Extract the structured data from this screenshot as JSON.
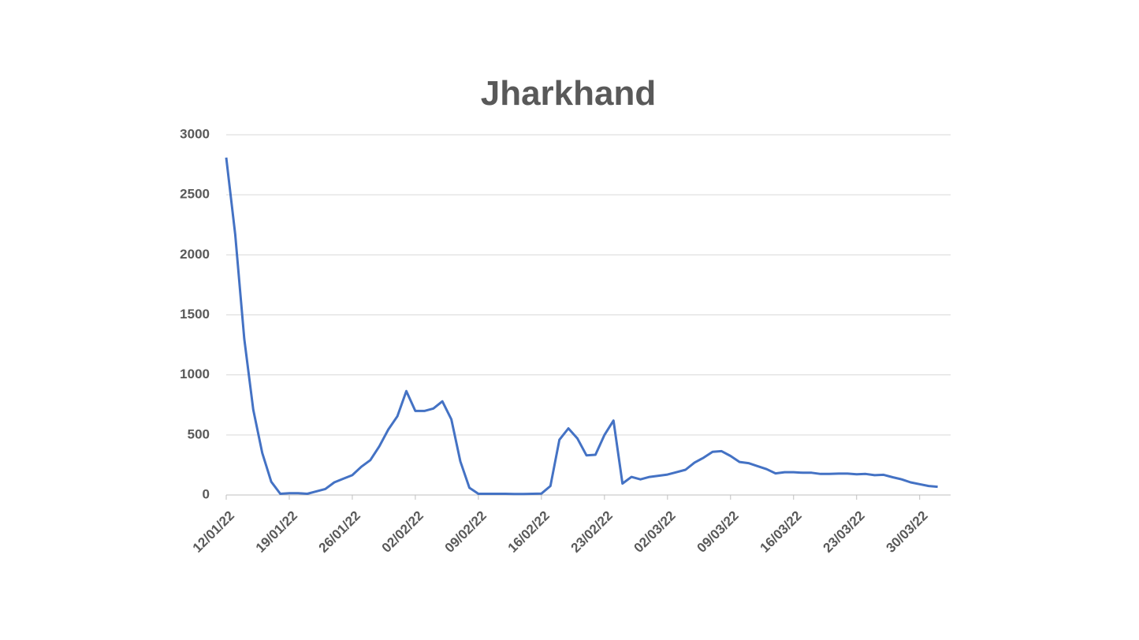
{
  "chart_data": {
    "type": "line",
    "title": "Jharkhand",
    "x": [
      "12/01/22",
      "13/01/22",
      "14/01/22",
      "15/01/22",
      "16/01/22",
      "17/01/22",
      "18/01/22",
      "19/01/22",
      "20/01/22",
      "21/01/22",
      "22/01/22",
      "23/01/22",
      "24/01/22",
      "25/01/22",
      "26/01/22",
      "27/01/22",
      "28/01/22",
      "29/01/22",
      "30/01/22",
      "31/01/22",
      "01/02/22",
      "02/02/22",
      "03/02/22",
      "04/02/22",
      "05/02/22",
      "06/02/22",
      "07/02/22",
      "08/02/22",
      "09/02/22",
      "10/02/22",
      "11/02/22",
      "12/02/22",
      "13/02/22",
      "14/02/22",
      "15/02/22",
      "16/02/22",
      "17/02/22",
      "18/02/22",
      "19/02/22",
      "20/02/22",
      "21/02/22",
      "22/02/22",
      "23/02/22",
      "24/02/22",
      "25/02/22",
      "26/02/22",
      "27/02/22",
      "28/02/22",
      "01/03/22",
      "02/03/22",
      "03/03/22",
      "04/03/22",
      "05/03/22",
      "06/03/22",
      "07/03/22",
      "08/03/22",
      "09/03/22",
      "10/03/22",
      "11/03/22",
      "12/03/22",
      "13/03/22",
      "14/03/22",
      "15/03/22",
      "16/03/22",
      "17/03/22",
      "18/03/22",
      "19/03/22",
      "20/03/22",
      "21/03/22",
      "22/03/22",
      "23/03/22",
      "24/03/22",
      "25/03/22",
      "26/03/22",
      "27/03/22",
      "28/03/22",
      "29/03/22",
      "30/03/22",
      "31/03/22",
      "01/04/22"
    ],
    "series": [
      {
        "color": "#4472c4",
        "values": [
          2810,
          2170,
          1300,
          710,
          350,
          110,
          10,
          15,
          15,
          10,
          30,
          50,
          105,
          135,
          165,
          235,
          290,
          405,
          545,
          655,
          865,
          700,
          700,
          720,
          780,
          630,
          280,
          60,
          10,
          10,
          10,
          10,
          8,
          8,
          10,
          12,
          75,
          460,
          555,
          470,
          330,
          335,
          500,
          620,
          95,
          150,
          130,
          150,
          160,
          170,
          190,
          210,
          270,
          310,
          360,
          365,
          325,
          275,
          265,
          240,
          215,
          180,
          190,
          190,
          185,
          185,
          175,
          175,
          178,
          178,
          172,
          175,
          165,
          168,
          148,
          130,
          105,
          90,
          75,
          68
        ]
      }
    ],
    "xlim": [
      "12/01/22",
      "02/04/22"
    ],
    "xticks": [
      "12/01/22",
      "19/01/22",
      "26/01/22",
      "02/02/22",
      "09/02/22",
      "16/02/22",
      "23/02/22",
      "02/03/22",
      "09/03/22",
      "16/03/22",
      "23/03/22",
      "30/03/22"
    ],
    "ylim": [
      0,
      3000
    ],
    "yticks": [
      0,
      500,
      1000,
      1500,
      2000,
      2500,
      3000
    ],
    "grid": true
  }
}
